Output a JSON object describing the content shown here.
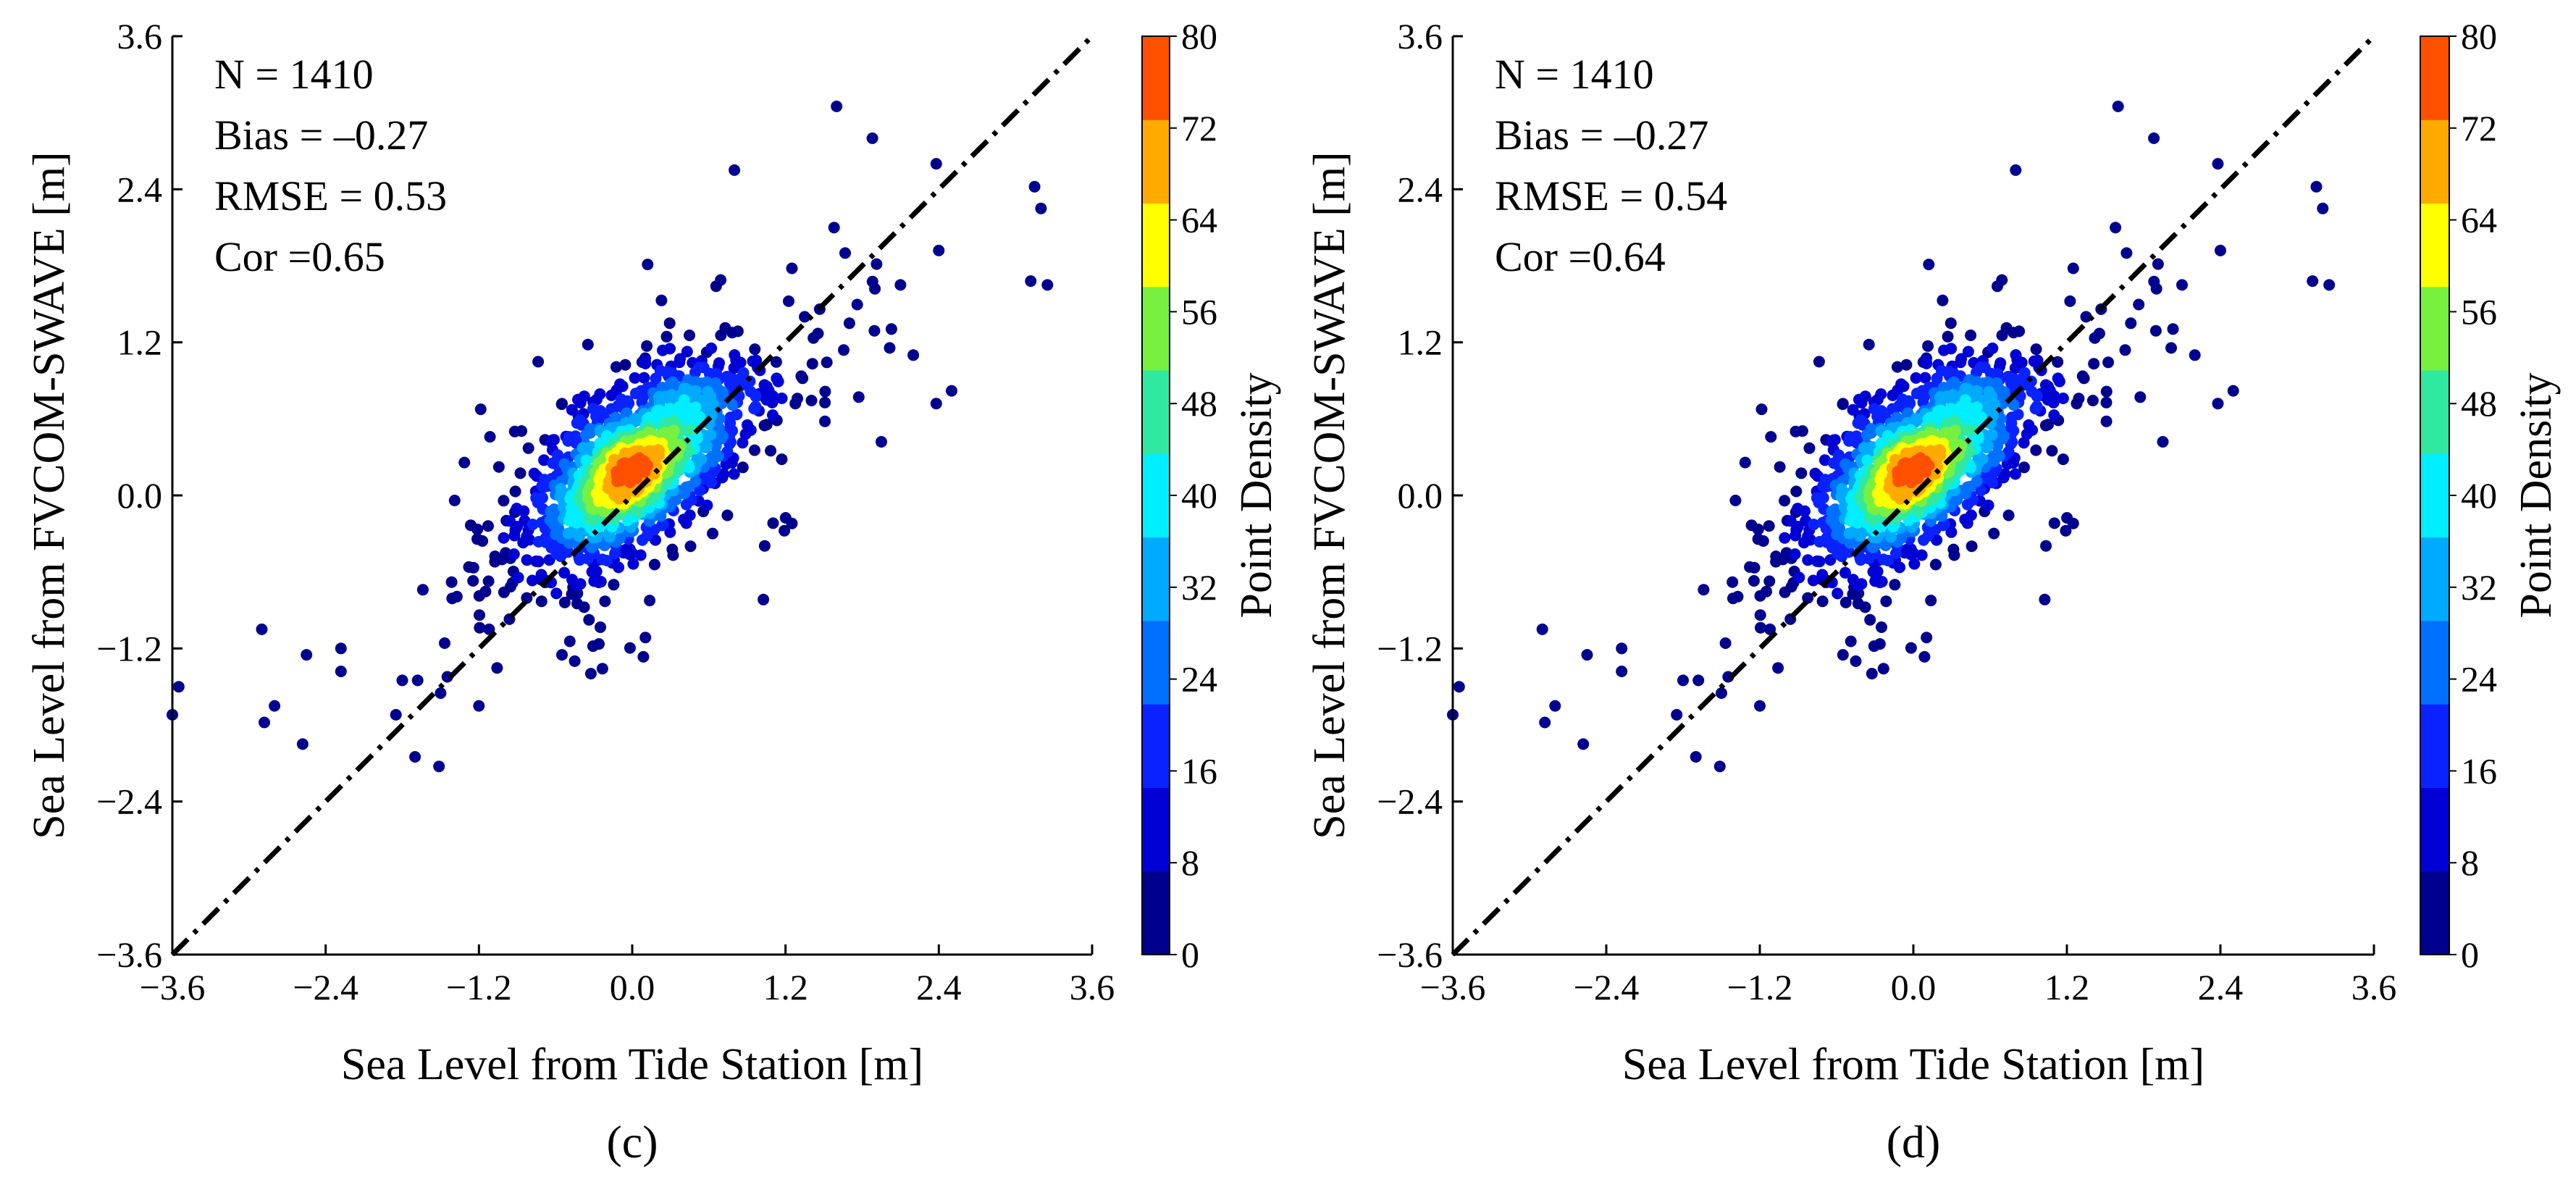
{
  "chart_data": [
    {
      "type": "scatter",
      "panel_label": "(c)",
      "xlabel": "Sea Level from Tide Station [m]",
      "ylabel": "Sea Level from FVCOM-SWAVE [m]",
      "xlim": [
        -3.6,
        3.6
      ],
      "ylim": [
        -3.6,
        3.6
      ],
      "xticks": [
        "−3.6",
        "−2.4",
        "−1.2",
        "0.0",
        "1.2",
        "2.4",
        "3.6"
      ],
      "yticks": [
        "−3.6",
        "−2.4",
        "−1.2",
        "0.0",
        "1.2",
        "2.4",
        "3.6"
      ],
      "grid": false,
      "reference_line": "1:1 dash-dot",
      "stats": [
        "N = 1410",
        "Bias = –0.27",
        "RMSE = 0.53",
        "Cor =0.65"
      ],
      "colorbar": {
        "label": "Point Density",
        "ticks": [
          "0",
          "8",
          "16",
          "24",
          "32",
          "40",
          "48",
          "56",
          "64",
          "72",
          "80"
        ],
        "colors": [
          "#00008f",
          "#0000d5",
          "#0a22ff",
          "#0070ff",
          "#00aaff",
          "#00eeff",
          "#30e8a0",
          "#78f040",
          "#ffff00",
          "#ffaa00",
          "#ff5000"
        ]
      },
      "outliers": [
        [
          -3.55,
          -1.5
        ],
        [
          -3.6,
          -1.72
        ],
        [
          -2.9,
          -1.05
        ],
        [
          -2.88,
          -1.78
        ],
        [
          -2.8,
          -1.65
        ],
        [
          -2.55,
          -1.25
        ],
        [
          -2.58,
          -1.95
        ],
        [
          -2.28,
          -1.2
        ],
        [
          -2.28,
          -1.38
        ],
        [
          -1.85,
          -1.72
        ],
        [
          -1.8,
          -1.45
        ],
        [
          -1.7,
          -2.05
        ],
        [
          -1.68,
          -1.45
        ],
        [
          -1.5,
          -1.55
        ],
        [
          -1.2,
          -1.65
        ],
        [
          -1.12,
          -1.05
        ],
        [
          -0.55,
          -1.25
        ],
        [
          -0.45,
          -1.3
        ],
        [
          0.8,
          2.55
        ],
        [
          1.6,
          3.05
        ],
        [
          1.58,
          2.1
        ],
        [
          1.88,
          2.8
        ],
        [
          2.38,
          2.6
        ],
        [
          2.4,
          1.92
        ],
        [
          3.15,
          2.42
        ],
        [
          3.2,
          2.25
        ],
        [
          3.12,
          1.68
        ],
        [
          3.25,
          1.65
        ],
        [
          2.38,
          0.72
        ],
        [
          2.5,
          0.82
        ],
        [
          1.95,
          0.42
        ],
        [
          2.2,
          1.1
        ],
        [
          1.25,
          1.78
        ],
        [
          1.9,
          1.62
        ],
        [
          2.1,
          1.65
        ],
        [
          1.25,
          -0.22
        ],
        [
          1.0,
          0.98
        ],
        [
          1.7,
          1.35
        ],
        [
          1.35,
          1.4
        ]
      ],
      "cloud": {
        "cx": 0.05,
        "cy": 0.25,
        "sx": 0.42,
        "sy": 0.38,
        "rho": 0.62,
        "n": 1371,
        "seed": 11
      }
    },
    {
      "type": "scatter",
      "panel_label": "(d)",
      "xlabel": "Sea Level from Tide Station [m]",
      "ylabel": "Sea Level from FVCOM-SWAVE [m]",
      "xlim": [
        -3.6,
        3.6
      ],
      "ylim": [
        -3.6,
        3.6
      ],
      "xticks": [
        "−3.6",
        "−2.4",
        "−1.2",
        "0.0",
        "1.2",
        "2.4",
        "3.6"
      ],
      "yticks": [
        "−3.6",
        "−2.4",
        "−1.2",
        "0.0",
        "1.2",
        "2.4",
        "3.6"
      ],
      "grid": false,
      "reference_line": "1:1 dash-dot",
      "stats": [
        "N = 1410",
        "Bias = –0.27",
        "RMSE = 0.54",
        "Cor =0.64"
      ],
      "colorbar": {
        "label": "Point Density",
        "ticks": [
          "0",
          "8",
          "16",
          "24",
          "32",
          "40",
          "48",
          "56",
          "64",
          "72",
          "80"
        ],
        "colors": [
          "#00008f",
          "#0000d5",
          "#0a22ff",
          "#0070ff",
          "#00aaff",
          "#00eeff",
          "#30e8a0",
          "#78f040",
          "#ffff00",
          "#ffaa00",
          "#ff5000"
        ]
      },
      "outliers": [
        [
          -3.55,
          -1.5
        ],
        [
          -3.6,
          -1.72
        ],
        [
          -2.9,
          -1.05
        ],
        [
          -2.88,
          -1.78
        ],
        [
          -2.8,
          -1.65
        ],
        [
          -2.55,
          -1.25
        ],
        [
          -2.58,
          -1.95
        ],
        [
          -2.28,
          -1.2
        ],
        [
          -2.28,
          -1.38
        ],
        [
          -1.85,
          -1.72
        ],
        [
          -1.8,
          -1.45
        ],
        [
          -1.7,
          -2.05
        ],
        [
          -1.68,
          -1.45
        ],
        [
          -1.5,
          -1.55
        ],
        [
          -1.2,
          -1.65
        ],
        [
          -1.12,
          -1.05
        ],
        [
          -0.55,
          -1.25
        ],
        [
          -0.45,
          -1.3
        ],
        [
          0.8,
          2.55
        ],
        [
          1.6,
          3.05
        ],
        [
          1.58,
          2.1
        ],
        [
          1.88,
          2.8
        ],
        [
          2.38,
          2.6
        ],
        [
          2.4,
          1.92
        ],
        [
          3.15,
          2.42
        ],
        [
          3.2,
          2.25
        ],
        [
          3.12,
          1.68
        ],
        [
          3.25,
          1.65
        ],
        [
          2.38,
          0.72
        ],
        [
          2.5,
          0.82
        ],
        [
          1.95,
          0.42
        ],
        [
          2.2,
          1.1
        ],
        [
          1.25,
          1.78
        ],
        [
          1.9,
          1.62
        ],
        [
          2.1,
          1.65
        ],
        [
          1.25,
          -0.22
        ],
        [
          1.0,
          0.98
        ],
        [
          1.7,
          1.35
        ],
        [
          1.35,
          1.4
        ]
      ],
      "cloud": {
        "cx": 0.05,
        "cy": 0.25,
        "sx": 0.42,
        "sy": 0.38,
        "rho": 0.62,
        "n": 1371,
        "seed": 11
      }
    }
  ]
}
